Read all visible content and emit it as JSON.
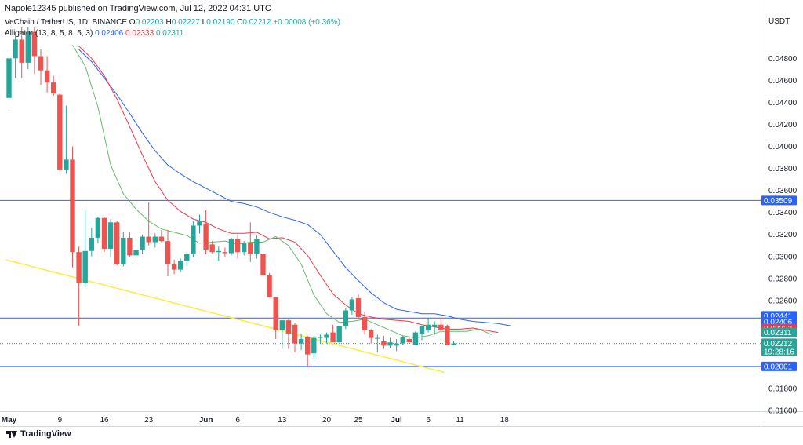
{
  "header": {
    "published": "Napole12345 published on TradingView.com, Jul 12, 2022 04:31 UTC",
    "symbol": "VeChain / TetherUS, 1D, BINANCE",
    "ohlc": {
      "o_label": "O",
      "o": "0.02203",
      "h_label": "H",
      "h": "0.02227",
      "l_label": "L",
      "l": "0.02190",
      "c_label": "C",
      "c": "0.02212",
      "change": "+0.00008 (+0.36%)"
    },
    "alligator": {
      "label": "Alligator (13, 8, 5, 8, 5, 3)",
      "jaw": "0.02406",
      "teeth": "0.02333",
      "lips": "0.02311"
    }
  },
  "colors": {
    "up": "#26a69a",
    "down": "#ef5350",
    "jaw": "#2962ff",
    "teeth": "#f23645",
    "lips": "#66bb6a",
    "hline": "#2962ff",
    "trendline": "#ffeb3b"
  },
  "currency": "USDT",
  "branding": "TradingView",
  "chart_data": {
    "type": "candlestick",
    "ylim": [
      0.0148,
      0.0508
    ],
    "y_ticks": [
      "0.04800",
      "0.04600",
      "0.04400",
      "0.04200",
      "0.04000",
      "0.03800",
      "0.03600",
      "0.03400",
      "0.03200",
      "0.03000",
      "0.02800",
      "0.02600",
      "0.02400",
      "0.02200",
      "0.02000",
      "0.01800",
      "0.01600"
    ],
    "x_ticks": [
      {
        "label": "May",
        "day": 0
      },
      {
        "label": "9",
        "day": 8
      },
      {
        "label": "16",
        "day": 15
      },
      {
        "label": "23",
        "day": 22
      },
      {
        "label": "Jun",
        "day": 31
      },
      {
        "label": "6",
        "day": 36
      },
      {
        "label": "13",
        "day": 43
      },
      {
        "label": "20",
        "day": 50
      },
      {
        "label": "25",
        "day": 55
      },
      {
        "label": "Jul",
        "day": 61
      },
      {
        "label": "6",
        "day": 66
      },
      {
        "label": "11",
        "day": 71
      },
      {
        "label": "18",
        "day": 78
      }
    ],
    "candles": [
      {
        "o": 0.0444,
        "h": 0.0485,
        "l": 0.0432,
        "c": 0.048
      },
      {
        "o": 0.048,
        "h": 0.0504,
        "l": 0.0462,
        "c": 0.0497
      },
      {
        "o": 0.0497,
        "h": 0.0508,
        "l": 0.0462,
        "c": 0.0476
      },
      {
        "o": 0.0476,
        "h": 0.0508,
        "l": 0.047,
        "c": 0.0504
      },
      {
        "o": 0.0504,
        "h": 0.0508,
        "l": 0.0466,
        "c": 0.0482
      },
      {
        "o": 0.0482,
        "h": 0.0488,
        "l": 0.0456,
        "c": 0.0469
      },
      {
        "o": 0.0469,
        "h": 0.0482,
        "l": 0.0449,
        "c": 0.0458
      },
      {
        "o": 0.0458,
        "h": 0.0464,
        "l": 0.0446,
        "c": 0.0448
      },
      {
        "o": 0.0447,
        "h": 0.0448,
        "l": 0.0377,
        "c": 0.0379
      },
      {
        "o": 0.0379,
        "h": 0.0437,
        "l": 0.0375,
        "c": 0.0388
      },
      {
        "o": 0.0388,
        "h": 0.04,
        "l": 0.029,
        "c": 0.0304
      },
      {
        "o": 0.0304,
        "h": 0.0309,
        "l": 0.0237,
        "c": 0.0276
      },
      {
        "o": 0.0276,
        "h": 0.0342,
        "l": 0.0272,
        "c": 0.0305
      },
      {
        "o": 0.0305,
        "h": 0.0326,
        "l": 0.03,
        "c": 0.0317
      },
      {
        "o": 0.0317,
        "h": 0.0336,
        "l": 0.0312,
        "c": 0.0335
      },
      {
        "o": 0.0335,
        "h": 0.0336,
        "l": 0.0304,
        "c": 0.0307
      },
      {
        "o": 0.0307,
        "h": 0.0334,
        "l": 0.0299,
        "c": 0.0331
      },
      {
        "o": 0.0331,
        "h": 0.0332,
        "l": 0.0292,
        "c": 0.0293
      },
      {
        "o": 0.0293,
        "h": 0.0322,
        "l": 0.0291,
        "c": 0.0317
      },
      {
        "o": 0.0317,
        "h": 0.0322,
        "l": 0.0299,
        "c": 0.0301
      },
      {
        "o": 0.0301,
        "h": 0.0313,
        "l": 0.0297,
        "c": 0.0306
      },
      {
        "o": 0.0306,
        "h": 0.032,
        "l": 0.0302,
        "c": 0.0318
      },
      {
        "o": 0.0318,
        "h": 0.0349,
        "l": 0.031,
        "c": 0.0313
      },
      {
        "o": 0.0313,
        "h": 0.0321,
        "l": 0.0308,
        "c": 0.0318
      },
      {
        "o": 0.0318,
        "h": 0.0324,
        "l": 0.0313,
        "c": 0.0314
      },
      {
        "o": 0.0314,
        "h": 0.0324,
        "l": 0.0282,
        "c": 0.0293
      },
      {
        "o": 0.0293,
        "h": 0.0297,
        "l": 0.0284,
        "c": 0.0288
      },
      {
        "o": 0.0288,
        "h": 0.0298,
        "l": 0.0286,
        "c": 0.0296
      },
      {
        "o": 0.0296,
        "h": 0.0304,
        "l": 0.0291,
        "c": 0.0302
      },
      {
        "o": 0.0302,
        "h": 0.0332,
        "l": 0.0299,
        "c": 0.0328
      },
      {
        "o": 0.0328,
        "h": 0.0338,
        "l": 0.0321,
        "c": 0.0332
      },
      {
        "o": 0.033,
        "h": 0.0342,
        "l": 0.0302,
        "c": 0.0306
      },
      {
        "o": 0.0311,
        "h": 0.0314,
        "l": 0.0303,
        "c": 0.0304
      },
      {
        "o": 0.0304,
        "h": 0.0309,
        "l": 0.0296,
        "c": 0.0305
      },
      {
        "o": 0.0304,
        "h": 0.0308,
        "l": 0.03,
        "c": 0.0303
      },
      {
        "o": 0.0303,
        "h": 0.0317,
        "l": 0.0301,
        "c": 0.0316
      },
      {
        "o": 0.0316,
        "h": 0.032,
        "l": 0.0298,
        "c": 0.0304
      },
      {
        "o": 0.0304,
        "h": 0.0314,
        "l": 0.0301,
        "c": 0.0312
      },
      {
        "o": 0.0312,
        "h": 0.0331,
        "l": 0.0295,
        "c": 0.0302
      },
      {
        "o": 0.0302,
        "h": 0.0319,
        "l": 0.0298,
        "c": 0.0316
      },
      {
        "o": 0.0302,
        "h": 0.0306,
        "l": 0.0283,
        "c": 0.0283
      },
      {
        "o": 0.0283,
        "h": 0.0285,
        "l": 0.0263,
        "c": 0.0263
      },
      {
        "o": 0.0263,
        "h": 0.0263,
        "l": 0.0225,
        "c": 0.0233
      },
      {
        "o": 0.0233,
        "h": 0.024,
        "l": 0.0216,
        "c": 0.0242
      },
      {
        "o": 0.0242,
        "h": 0.0243,
        "l": 0.0216,
        "c": 0.023
      },
      {
        "o": 0.0238,
        "h": 0.024,
        "l": 0.0213,
        "c": 0.0221
      },
      {
        "o": 0.0221,
        "h": 0.023,
        "l": 0.0215,
        "c": 0.0225
      },
      {
        "o": 0.0227,
        "h": 0.0228,
        "l": 0.02,
        "c": 0.0211
      },
      {
        "o": 0.0212,
        "h": 0.0228,
        "l": 0.0207,
        "c": 0.0226
      },
      {
        "o": 0.0226,
        "h": 0.0229,
        "l": 0.0221,
        "c": 0.0227
      },
      {
        "o": 0.0226,
        "h": 0.0231,
        "l": 0.0221,
        "c": 0.0229
      },
      {
        "o": 0.0231,
        "h": 0.0238,
        "l": 0.0224,
        "c": 0.0222
      },
      {
        "o": 0.0222,
        "h": 0.0236,
        "l": 0.0222,
        "c": 0.0237
      },
      {
        "o": 0.0237,
        "h": 0.0253,
        "l": 0.0234,
        "c": 0.0251
      },
      {
        "o": 0.0251,
        "h": 0.0263,
        "l": 0.0247,
        "c": 0.0261
      },
      {
        "o": 0.0262,
        "h": 0.0266,
        "l": 0.0244,
        "c": 0.0245
      },
      {
        "o": 0.0245,
        "h": 0.025,
        "l": 0.0229,
        "c": 0.0233
      },
      {
        "o": 0.0233,
        "h": 0.0234,
        "l": 0.0221,
        "c": 0.0226
      },
      {
        "o": 0.0226,
        "h": 0.0229,
        "l": 0.0213,
        "c": 0.0226
      },
      {
        "o": 0.0223,
        "h": 0.0228,
        "l": 0.0216,
        "c": 0.0219
      },
      {
        "o": 0.0219,
        "h": 0.0226,
        "l": 0.0217,
        "c": 0.0222
      },
      {
        "o": 0.0219,
        "h": 0.0225,
        "l": 0.0214,
        "c": 0.0221
      },
      {
        "o": 0.0221,
        "h": 0.0228,
        "l": 0.022,
        "c": 0.0227
      },
      {
        "o": 0.0225,
        "h": 0.0227,
        "l": 0.0221,
        "c": 0.0222
      },
      {
        "o": 0.022,
        "h": 0.0232,
        "l": 0.0219,
        "c": 0.0231
      },
      {
        "o": 0.023,
        "h": 0.0237,
        "l": 0.0224,
        "c": 0.0237
      },
      {
        "o": 0.0233,
        "h": 0.0244,
        "l": 0.0231,
        "c": 0.0238
      },
      {
        "o": 0.0236,
        "h": 0.0241,
        "l": 0.0229,
        "c": 0.0238
      },
      {
        "o": 0.0238,
        "h": 0.0244,
        "l": 0.0232,
        "c": 0.0233
      },
      {
        "o": 0.0237,
        "h": 0.0238,
        "l": 0.022,
        "c": 0.022
      },
      {
        "o": 0.022,
        "h": 0.0223,
        "l": 0.0219,
        "c": 0.0221
      }
    ],
    "series": [
      {
        "name": "Jaw",
        "color": "#2962ff",
        "points": [
          [
            11,
            0.0488
          ],
          [
            13,
            0.0477
          ],
          [
            15,
            0.0462
          ],
          [
            17,
            0.0447
          ],
          [
            19,
            0.043
          ],
          [
            21,
            0.0412
          ],
          [
            23,
            0.0396
          ],
          [
            25,
            0.0383
          ],
          [
            27,
            0.0375
          ],
          [
            29,
            0.0368
          ],
          [
            31,
            0.0362
          ],
          [
            33,
            0.0356
          ],
          [
            35,
            0.035
          ],
          [
            37,
            0.0348
          ],
          [
            39,
            0.0345
          ],
          [
            41,
            0.034
          ],
          [
            43,
            0.0336
          ],
          [
            45,
            0.0333
          ],
          [
            47,
            0.0329
          ],
          [
            49,
            0.032
          ],
          [
            51,
            0.0305
          ],
          [
            53,
            0.029
          ],
          [
            55,
            0.0278
          ],
          [
            57,
            0.0267
          ],
          [
            59,
            0.0258
          ],
          [
            61,
            0.0252
          ],
          [
            63,
            0.025
          ],
          [
            65,
            0.0248
          ],
          [
            67,
            0.0248
          ],
          [
            69,
            0.0246
          ],
          [
            71,
            0.0243
          ],
          [
            73,
            0.0241
          ],
          [
            75,
            0.024
          ],
          [
            77,
            0.0239
          ],
          [
            79,
            0.0237
          ]
        ]
      },
      {
        "name": "Teeth",
        "color": "#f23645",
        "points": [
          [
            11,
            0.0491
          ],
          [
            13,
            0.048
          ],
          [
            15,
            0.0464
          ],
          [
            17,
            0.0443
          ],
          [
            19,
            0.0418
          ],
          [
            21,
            0.0392
          ],
          [
            23,
            0.0368
          ],
          [
            25,
            0.0351
          ],
          [
            27,
            0.0341
          ],
          [
            29,
            0.0334
          ],
          [
            31,
            0.0331
          ],
          [
            33,
            0.0325
          ],
          [
            35,
            0.0321
          ],
          [
            37,
            0.0321
          ],
          [
            39,
            0.0322
          ],
          [
            41,
            0.0316
          ],
          [
            43,
            0.0317
          ],
          [
            45,
            0.0313
          ],
          [
            47,
            0.0301
          ],
          [
            49,
            0.0283
          ],
          [
            51,
            0.0266
          ],
          [
            53,
            0.0256
          ],
          [
            55,
            0.0248
          ],
          [
            57,
            0.0245
          ],
          [
            59,
            0.0243
          ],
          [
            61,
            0.0242
          ],
          [
            63,
            0.0241
          ],
          [
            65,
            0.0238
          ],
          [
            67,
            0.0236
          ],
          [
            69,
            0.0234
          ],
          [
            71,
            0.0234
          ],
          [
            73,
            0.0235
          ],
          [
            75,
            0.0233
          ],
          [
            77,
            0.0231
          ]
        ]
      },
      {
        "name": "Lips",
        "color": "#66bb6a",
        "points": [
          [
            10,
            0.0492
          ],
          [
            12,
            0.0473
          ],
          [
            14,
            0.0436
          ],
          [
            16,
            0.0383
          ],
          [
            18,
            0.0357
          ],
          [
            20,
            0.0343
          ],
          [
            22,
            0.0332
          ],
          [
            24,
            0.0325
          ],
          [
            26,
            0.0322
          ],
          [
            28,
            0.0319
          ],
          [
            30,
            0.0312
          ],
          [
            32,
            0.0313
          ],
          [
            34,
            0.0314
          ],
          [
            36,
            0.0311
          ],
          [
            38,
            0.0313
          ],
          [
            40,
            0.0313
          ],
          [
            42,
            0.0318
          ],
          [
            44,
            0.031
          ],
          [
            46,
            0.0293
          ],
          [
            48,
            0.0265
          ],
          [
            50,
            0.0248
          ],
          [
            52,
            0.024
          ],
          [
            54,
            0.0241
          ],
          [
            56,
            0.0243
          ],
          [
            58,
            0.0238
          ],
          [
            60,
            0.0233
          ],
          [
            62,
            0.0228
          ],
          [
            64,
            0.0226
          ],
          [
            66,
            0.0228
          ],
          [
            68,
            0.0232
          ],
          [
            70,
            0.0232
          ],
          [
            72,
            0.0232
          ],
          [
            74,
            0.0234
          ],
          [
            76,
            0.0229
          ]
        ]
      }
    ],
    "hlines": [
      0.03509,
      0.02441,
      0.02001
    ],
    "trendline": {
      "from": [
        -0.5,
        0.0297
      ],
      "to": [
        68.5,
        0.01948
      ]
    },
    "price_labels": [
      {
        "value": 0.03509,
        "text": "0.03509",
        "color": "#2962ff",
        "y_value": 0.03509
      },
      {
        "value": 0.02441,
        "text": "0.02441",
        "color": "#2962ff",
        "y_value": 0.02461
      },
      {
        "value": 0.02406,
        "text": "0.02406",
        "color": "#2962ff",
        "y_value": 0.02405
      },
      {
        "value": 0.02333,
        "text": "0.02333",
        "color": "#f23645",
        "y_value": 0.02345
      },
      {
        "value": 0.02311,
        "text": "0.02311",
        "color": "#26a69a",
        "y_value": 0.0231
      },
      {
        "value": 0.02212,
        "text": "0.02212",
        "color": "#26a69a",
        "y_value": 0.02212,
        "sub": "19:28:16"
      },
      {
        "value": 0.02001,
        "text": "0.02001",
        "color": "#2962ff",
        "y_value": 0.02001
      }
    ]
  }
}
